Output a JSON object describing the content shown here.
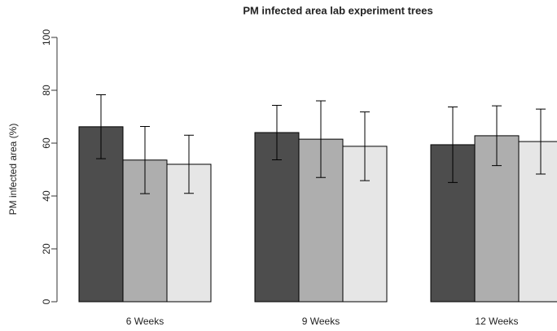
{
  "chart_data": {
    "type": "bar",
    "title": "PM infected area lab experiment trees",
    "ylabel": "PM infected area (%)",
    "categories": [
      "6 Weeks",
      "9 Weeks",
      "12 Weeks"
    ],
    "series": [
      {
        "color": "#4d4d4d",
        "values": [
          66.2,
          64,
          59.4
        ],
        "errors": [
          12.1,
          10.3,
          14.3
        ]
      },
      {
        "color": "#aeaeae",
        "values": [
          53.6,
          61.5,
          62.8
        ],
        "errors": [
          12.7,
          14.5,
          11.3
        ]
      },
      {
        "color": "#e6e6e6",
        "values": [
          52,
          58.8,
          60.6
        ],
        "errors": [
          11,
          13,
          12.3
        ]
      }
    ],
    "ylim": [
      0,
      100
    ],
    "yticks": [
      0,
      20,
      40,
      60,
      80,
      100
    ]
  }
}
